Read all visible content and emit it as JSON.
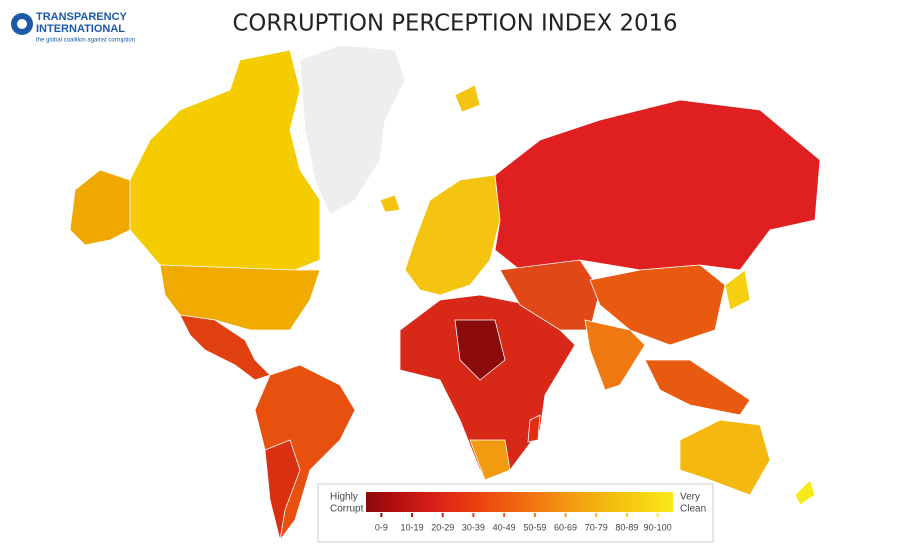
{
  "header": {
    "logo_line1": "TRANSPARENCY",
    "logo_line2": "INTERNATIONAL",
    "logo_tagline": "the global coalition against corruption",
    "title": "CORRUPTION PERCEPTION INDEX 2016"
  },
  "legend": {
    "low_label": [
      "Highly",
      "Corrupt"
    ],
    "high_label": [
      "Very",
      "Clean"
    ],
    "ranges": [
      "0-9",
      "10-19",
      "20-29",
      "30-39",
      "40-49",
      "50-59",
      "60-69",
      "70-79",
      "80-89",
      "90-100"
    ],
    "colors": [
      "#8b0a0a",
      "#b81010",
      "#d82018",
      "#e83a10",
      "#ee5a10",
      "#f07810",
      "#f29a10",
      "#f4b810",
      "#f6d010",
      "#f8ea18"
    ]
  }
}
